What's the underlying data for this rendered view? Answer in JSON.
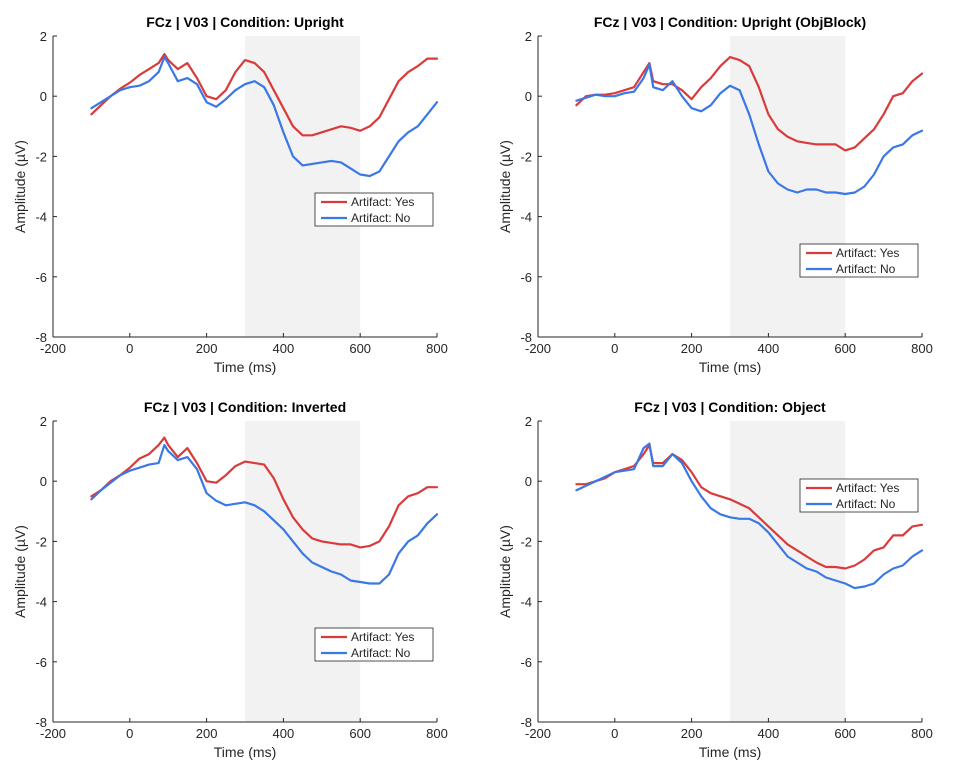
{
  "colors": {
    "artifact_yes": "#d93b3b",
    "artifact_no": "#3a78e6",
    "window_shade": "#f2f2f2",
    "axis": "#262626"
  },
  "chart_data": [
    {
      "type": "line",
      "title": "FCz | V03 | Condition: Upright",
      "xlabel": "Time (ms)",
      "ylabel": "Amplitude (µV)",
      "xlim": [
        -200,
        800
      ],
      "ylim": [
        -8,
        2
      ],
      "xticks": [
        -200,
        0,
        200,
        400,
        600,
        800
      ],
      "yticks": [
        -8,
        -6,
        -4,
        -2,
        0,
        2
      ],
      "shaded_window": [
        300,
        600
      ],
      "legend": {
        "location": "right-middle",
        "entries": [
          "Artifact: Yes",
          "Artifact: No"
        ]
      },
      "x": [
        -100,
        -75,
        -50,
        -25,
        0,
        25,
        50,
        75,
        90,
        100,
        125,
        150,
        175,
        200,
        225,
        250,
        275,
        300,
        325,
        350,
        375,
        400,
        425,
        450,
        475,
        500,
        525,
        550,
        575,
        600,
        625,
        650,
        675,
        700,
        725,
        750,
        775,
        800
      ],
      "series": [
        {
          "name": "Artifact: Yes",
          "color_key": "artifact_yes",
          "values": [
            -0.6,
            -0.3,
            0.0,
            0.25,
            0.45,
            0.7,
            0.9,
            1.1,
            1.4,
            1.2,
            0.9,
            1.1,
            0.6,
            0.0,
            -0.1,
            0.2,
            0.8,
            1.2,
            1.1,
            0.8,
            0.2,
            -0.4,
            -1.0,
            -1.3,
            -1.3,
            -1.2,
            -1.1,
            -1.0,
            -1.05,
            -1.15,
            -1.0,
            -0.7,
            -0.1,
            0.5,
            0.8,
            1.0,
            1.25,
            1.25
          ]
        },
        {
          "name": "Artifact: No",
          "color_key": "artifact_no",
          "values": [
            -0.4,
            -0.2,
            0.0,
            0.2,
            0.3,
            0.35,
            0.5,
            0.8,
            1.3,
            1.1,
            0.5,
            0.6,
            0.4,
            -0.2,
            -0.35,
            -0.1,
            0.2,
            0.4,
            0.5,
            0.3,
            -0.3,
            -1.2,
            -2.0,
            -2.3,
            -2.25,
            -2.2,
            -2.15,
            -2.2,
            -2.4,
            -2.6,
            -2.65,
            -2.5,
            -2.0,
            -1.5,
            -1.2,
            -1.0,
            -0.6,
            -0.2
          ]
        }
      ]
    },
    {
      "type": "line",
      "title": "FCz | V03 | Condition: Upright (ObjBlock)",
      "xlabel": "Time (ms)",
      "ylabel": "Amplitude (µV)",
      "xlim": [
        -200,
        800
      ],
      "ylim": [
        -8,
        2
      ],
      "xticks": [
        -200,
        0,
        200,
        400,
        600,
        800
      ],
      "yticks": [
        -8,
        -6,
        -4,
        -2,
        0,
        2
      ],
      "shaded_window": [
        300,
        600
      ],
      "legend": {
        "location": "lower-right",
        "entries": [
          "Artifact: Yes",
          "Artifact: No"
        ]
      },
      "x": [
        -100,
        -75,
        -50,
        -25,
        0,
        25,
        50,
        75,
        90,
        100,
        125,
        150,
        175,
        200,
        225,
        250,
        275,
        300,
        325,
        350,
        375,
        400,
        425,
        450,
        475,
        500,
        525,
        550,
        575,
        600,
        625,
        650,
        675,
        700,
        725,
        750,
        775,
        800
      ],
      "series": [
        {
          "name": "Artifact: Yes",
          "color_key": "artifact_yes",
          "values": [
            -0.3,
            0.0,
            0.05,
            0.05,
            0.1,
            0.2,
            0.3,
            0.8,
            1.1,
            0.5,
            0.4,
            0.4,
            0.2,
            -0.1,
            0.3,
            0.6,
            1.0,
            1.3,
            1.2,
            1.0,
            0.3,
            -0.6,
            -1.1,
            -1.35,
            -1.5,
            -1.55,
            -1.6,
            -1.6,
            -1.6,
            -1.8,
            -1.7,
            -1.4,
            -1.1,
            -0.6,
            0.0,
            0.1,
            0.5,
            0.75
          ]
        },
        {
          "name": "Artifact: No",
          "color_key": "artifact_no",
          "values": [
            -0.15,
            -0.05,
            0.05,
            0.0,
            0.0,
            0.1,
            0.15,
            0.6,
            1.05,
            0.3,
            0.2,
            0.5,
            0.0,
            -0.4,
            -0.5,
            -0.3,
            0.1,
            0.35,
            0.2,
            -0.6,
            -1.6,
            -2.5,
            -2.9,
            -3.1,
            -3.2,
            -3.1,
            -3.1,
            -3.2,
            -3.2,
            -3.25,
            -3.2,
            -3.0,
            -2.6,
            -2.0,
            -1.7,
            -1.6,
            -1.3,
            -1.15
          ]
        }
      ]
    },
    {
      "type": "line",
      "title": "FCz | V03 | Condition: Inverted",
      "xlabel": "Time (ms)",
      "ylabel": "Amplitude (µV)",
      "xlim": [
        -200,
        800
      ],
      "ylim": [
        -8,
        2
      ],
      "xticks": [
        -200,
        0,
        200,
        400,
        600,
        800
      ],
      "yticks": [
        -8,
        -6,
        -4,
        -2,
        0,
        2
      ],
      "shaded_window": [
        300,
        600
      ],
      "legend": {
        "location": "lower-right",
        "entries": [
          "Artifact: Yes",
          "Artifact: No"
        ]
      },
      "x": [
        -100,
        -75,
        -50,
        -25,
        0,
        25,
        50,
        75,
        90,
        100,
        125,
        150,
        175,
        200,
        225,
        250,
        275,
        300,
        325,
        350,
        375,
        400,
        425,
        450,
        475,
        500,
        525,
        550,
        575,
        600,
        625,
        650,
        675,
        700,
        725,
        750,
        775,
        800
      ],
      "series": [
        {
          "name": "Artifact: Yes",
          "color_key": "artifact_yes",
          "values": [
            -0.5,
            -0.3,
            0.0,
            0.2,
            0.45,
            0.75,
            0.9,
            1.2,
            1.45,
            1.2,
            0.8,
            1.1,
            0.6,
            0.0,
            -0.05,
            0.2,
            0.5,
            0.65,
            0.6,
            0.55,
            0.1,
            -0.6,
            -1.2,
            -1.6,
            -1.9,
            -2.0,
            -2.05,
            -2.1,
            -2.1,
            -2.2,
            -2.15,
            -2.0,
            -1.5,
            -0.8,
            -0.5,
            -0.4,
            -0.2,
            -0.2
          ]
        },
        {
          "name": "Artifact: No",
          "color_key": "artifact_no",
          "values": [
            -0.6,
            -0.3,
            -0.05,
            0.2,
            0.35,
            0.45,
            0.55,
            0.6,
            1.2,
            1.0,
            0.7,
            0.8,
            0.4,
            -0.4,
            -0.65,
            -0.8,
            -0.75,
            -0.7,
            -0.8,
            -1.0,
            -1.3,
            -1.6,
            -2.0,
            -2.4,
            -2.7,
            -2.85,
            -3.0,
            -3.1,
            -3.3,
            -3.35,
            -3.4,
            -3.4,
            -3.1,
            -2.4,
            -2.0,
            -1.8,
            -1.4,
            -1.1
          ]
        }
      ]
    },
    {
      "type": "line",
      "title": "FCz | V03 | Condition: Object",
      "xlabel": "Time (ms)",
      "ylabel": "Amplitude (µV)",
      "xlim": [
        -200,
        800
      ],
      "ylim": [
        -8,
        2
      ],
      "xticks": [
        -200,
        0,
        200,
        400,
        600,
        800
      ],
      "yticks": [
        -8,
        -6,
        -4,
        -2,
        0,
        2
      ],
      "shaded_window": [
        300,
        600
      ],
      "legend": {
        "location": "top-right",
        "entries": [
          "Artifact: Yes",
          "Artifact: No"
        ]
      },
      "x": [
        -100,
        -75,
        -50,
        -25,
        0,
        25,
        50,
        75,
        90,
        100,
        125,
        150,
        175,
        200,
        225,
        250,
        275,
        300,
        325,
        350,
        375,
        400,
        425,
        450,
        475,
        500,
        525,
        550,
        575,
        600,
        625,
        650,
        675,
        700,
        725,
        750,
        775,
        800
      ],
      "series": [
        {
          "name": "Artifact: Yes",
          "color_key": "artifact_yes",
          "values": [
            -0.1,
            -0.1,
            0.0,
            0.1,
            0.3,
            0.4,
            0.5,
            0.9,
            1.2,
            0.6,
            0.6,
            0.9,
            0.7,
            0.3,
            -0.2,
            -0.4,
            -0.5,
            -0.6,
            -0.75,
            -0.9,
            -1.2,
            -1.5,
            -1.8,
            -2.1,
            -2.3,
            -2.5,
            -2.7,
            -2.85,
            -2.85,
            -2.9,
            -2.8,
            -2.6,
            -2.3,
            -2.2,
            -1.8,
            -1.8,
            -1.5,
            -1.45
          ]
        },
        {
          "name": "Artifact: No",
          "color_key": "artifact_no",
          "values": [
            -0.3,
            -0.15,
            0.0,
            0.15,
            0.3,
            0.35,
            0.4,
            1.1,
            1.25,
            0.5,
            0.5,
            0.9,
            0.6,
            0.0,
            -0.5,
            -0.9,
            -1.1,
            -1.2,
            -1.25,
            -1.25,
            -1.4,
            -1.7,
            -2.1,
            -2.5,
            -2.7,
            -2.9,
            -3.0,
            -3.2,
            -3.3,
            -3.4,
            -3.55,
            -3.5,
            -3.4,
            -3.1,
            -2.9,
            -2.8,
            -2.5,
            -2.3
          ]
        }
      ]
    }
  ]
}
